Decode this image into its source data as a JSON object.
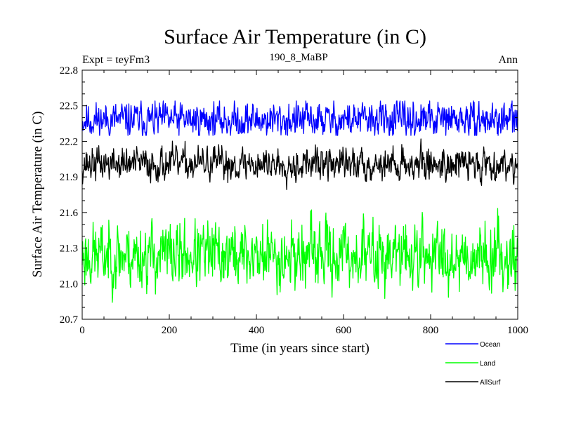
{
  "chart_data": {
    "type": "line",
    "title": "Surface Air Temperature (in C)",
    "subtitle": "190_8_MaBP",
    "left_annotation": "Expt = teyFm3",
    "right_annotation": "Ann",
    "xlabel": "Time (in years since start)",
    "ylabel": "Surface Air Temperature (in C)",
    "xlim": [
      0,
      1000
    ],
    "ylim": [
      20.7,
      22.8
    ],
    "xticks": [
      0,
      200,
      400,
      600,
      800,
      1000
    ],
    "xtick_labels": [
      "0",
      "200",
      "400",
      "600",
      "800",
      "1000"
    ],
    "yticks": [
      20.7,
      21.0,
      21.3,
      21.6,
      21.9,
      22.2,
      22.5,
      22.8
    ],
    "ytick_labels": [
      "20.7",
      "21.0",
      "21.3",
      "21.6",
      "21.9",
      "22.2",
      "22.5",
      "22.8"
    ],
    "grid": false,
    "legend_position": "bottom-right",
    "series": [
      {
        "name": "Ocean",
        "color": "#0000ff",
        "mean": 22.38,
        "amplitude": 0.07,
        "min": 22.25,
        "max": 22.54,
        "n_points": 1000,
        "seed": 11
      },
      {
        "name": "Land",
        "color": "#00ff00",
        "mean": 21.24,
        "amplitude": 0.13,
        "min": 20.77,
        "max": 21.73,
        "n_points": 1000,
        "seed": 23
      },
      {
        "name": "AllSurf",
        "color": "#000000",
        "mean": 22.01,
        "amplitude": 0.065,
        "min": 21.78,
        "max": 22.22,
        "n_points": 1000,
        "seed": 37
      }
    ]
  }
}
